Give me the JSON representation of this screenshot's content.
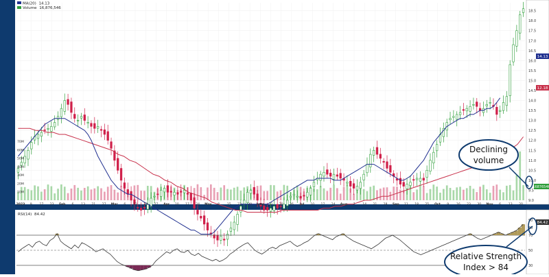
{
  "chart_data": [
    {
      "type": "candlestick",
      "title": "",
      "legend": [
        {
          "name": "MA(20)",
          "value": "14.13",
          "color": "#1f2f8f"
        },
        {
          "name": "Volume",
          "value": "16,876,546",
          "color": "#2e9e3a"
        }
      ],
      "legend_placement": "top-left",
      "y_axis_side": "right",
      "ylim": [
        9.0,
        18.9
      ],
      "y_ticks": [
        "18.5",
        "18.0",
        "17.5",
        "17.0",
        "16.5",
        "16.0",
        "15.5",
        "15.0",
        "14.5",
        "14.0",
        "13.5",
        "13.0",
        "12.5",
        "12.0",
        "11.5",
        "11.0",
        "10.5",
        "10.0",
        "9.5",
        "9.0"
      ],
      "price_badges": [
        {
          "value": "14.13",
          "color": "#1f2f8f"
        },
        {
          "value": "12.18",
          "color": "#c8304a"
        }
      ],
      "volume_axis": [
        "70M",
        "60M",
        "50M",
        "40M",
        "30M",
        "20M",
        "10M"
      ],
      "volume_ylim": [
        0,
        75
      ],
      "volume_badge": "16876546",
      "x_labels": [
        "2023",
        "9",
        "17",
        "23",
        "Feb",
        "6",
        "13",
        "21",
        "27",
        "Mar",
        "6",
        "13",
        "20",
        "27",
        "Apr",
        "10",
        "17",
        "24",
        "May",
        "8",
        "15",
        "22",
        "30",
        "June",
        "12",
        "20",
        "26",
        "Jul",
        "10",
        "17",
        "24",
        "Aug",
        "7",
        "14",
        "21",
        "28",
        "Sep",
        "11",
        "18",
        "25",
        "Oct",
        "9",
        "16",
        "23",
        "30",
        "Nov",
        "6",
        "13",
        "20"
      ],
      "close": [
        10.6,
        10.9,
        11.2,
        11.5,
        11.9,
        12.2,
        12.3,
        12.4,
        12.5,
        12.6,
        12.7,
        12.9,
        13.2,
        13.6,
        14.0,
        13.8,
        13.4,
        13.1,
        13.0,
        13.2,
        13.0,
        12.9,
        12.7,
        12.6,
        12.7,
        12.5,
        12.3,
        12.0,
        11.6,
        11.0,
        10.5,
        10.0,
        9.6,
        9.3,
        9.0,
        8.8,
        8.6,
        8.5,
        8.6,
        8.8,
        9.1,
        9.2,
        9.3,
        9.5,
        9.6,
        9.4,
        9.4,
        9.4,
        9.3,
        9.4,
        9.5,
        9.3,
        9.0,
        8.6,
        8.3,
        8.1,
        7.8,
        7.5,
        7.3,
        7.1,
        7.0,
        7.2,
        7.0,
        7.3,
        7.6,
        7.9,
        8.3,
        8.7,
        9.0,
        9.4,
        9.5,
        9.3,
        9.0,
        8.7,
        8.5,
        8.5,
        8.6,
        8.7,
        8.6,
        8.7,
        8.8,
        9.0,
        9.2,
        9.3,
        9.2,
        9.1,
        9.2,
        9.4,
        9.6,
        9.9,
        10.1,
        10.3,
        10.4,
        10.3,
        10.2,
        10.3,
        10.2,
        10.1,
        10.0,
        9.9,
        9.7,
        9.6,
        9.7,
        9.9,
        10.3,
        10.8,
        11.3,
        11.5,
        11.3,
        11.1,
        10.9,
        10.6,
        10.4,
        10.2,
        10.0,
        9.8,
        9.7,
        9.8,
        9.9,
        10.0,
        10.1,
        10.1,
        10.0,
        10.5,
        11.0,
        11.4,
        11.8,
        12.3,
        12.6,
        12.9,
        13.1,
        13.2,
        13.3,
        13.4,
        13.5,
        13.6,
        13.7,
        13.8,
        13.7,
        13.5,
        13.6,
        13.8,
        13.9,
        13.7,
        13.3,
        13.5,
        13.9,
        14.2,
        15.8,
        16.8,
        17.5,
        18.3,
        18.6
      ],
      "ma_blue": [
        11.2,
        11.4,
        11.6,
        11.8,
        12.0,
        12.2,
        12.4,
        12.6,
        12.8,
        12.9,
        13.0,
        13.1,
        13.1,
        13.1,
        13.1,
        13.0,
        12.9,
        12.8,
        12.7,
        12.6,
        12.5,
        12.3,
        12.0,
        11.6,
        11.2,
        10.9,
        10.6,
        10.3,
        10.0,
        9.8,
        9.6,
        9.5,
        9.4,
        9.3,
        9.3,
        9.2,
        9.1,
        9.0,
        8.9,
        8.8,
        8.7,
        8.6,
        8.5,
        8.4,
        8.3,
        8.2,
        8.1,
        8.0,
        7.9,
        7.8,
        7.7,
        7.6,
        7.5,
        7.5,
        7.4,
        7.3,
        7.3,
        7.3,
        7.3,
        7.4,
        7.6,
        7.8,
        8.0,
        8.2,
        8.4,
        8.6,
        8.7,
        8.8,
        8.8,
        8.8,
        8.8,
        8.8,
        8.8,
        8.8,
        8.8,
        8.8,
        8.9,
        9.0,
        9.1,
        9.2,
        9.3,
        9.4,
        9.5,
        9.6,
        9.7,
        9.8,
        9.9,
        10.0,
        10.0,
        10.0,
        10.1,
        10.1,
        10.1,
        10.1,
        10.1,
        10.0,
        10.0,
        10.0,
        10.1,
        10.2,
        10.3,
        10.4,
        10.5,
        10.6,
        10.7,
        10.8,
        10.8,
        10.8,
        10.7,
        10.6,
        10.5,
        10.4,
        10.3,
        10.2,
        10.1,
        10.0,
        10.0,
        10.1,
        10.2,
        10.4,
        10.6,
        10.8,
        11.0,
        11.3,
        11.6,
        11.9,
        12.1,
        12.3,
        12.5,
        12.7,
        12.8,
        12.9,
        13.0,
        13.1,
        13.1,
        13.2,
        13.3,
        13.3,
        13.4,
        13.5,
        13.5,
        13.6,
        13.6,
        13.7,
        13.9,
        14.13
      ],
      "ma_red": [
        12.6,
        12.6,
        12.6,
        12.5,
        12.5,
        12.4,
        12.4,
        12.3,
        12.3,
        12.2,
        12.1,
        12.0,
        11.9,
        11.8,
        11.7,
        11.6,
        11.5,
        11.3,
        11.2,
        11.0,
        10.9,
        10.7,
        10.5,
        10.3,
        10.2,
        10.0,
        9.9,
        9.7,
        9.6,
        9.4,
        9.3,
        9.2,
        9.1,
        8.9,
        8.8,
        8.7,
        8.6,
        8.5,
        8.5,
        8.4,
        8.4,
        8.4,
        8.4,
        8.4,
        8.4,
        8.5,
        8.5,
        8.5,
        8.5,
        8.5,
        8.5,
        8.5,
        8.6,
        8.6,
        8.7,
        8.7,
        8.8,
        8.8,
        8.9,
        9.0,
        9.0,
        9.1,
        9.2,
        9.2,
        9.3,
        9.4,
        9.5,
        9.6,
        9.7,
        9.8,
        9.9,
        10.0,
        10.1,
        10.2,
        10.3,
        10.4,
        10.5,
        10.6,
        10.7,
        10.8,
        10.9,
        11.0,
        11.2,
        11.4,
        11.6,
        11.8,
        12.18
      ],
      "annotation": "Declining\nvolume"
    },
    {
      "type": "line",
      "legend": [
        {
          "name": "RSI(14)",
          "value": "84.42",
          "color": "#222222"
        }
      ],
      "ylim": [
        20,
        100
      ],
      "y_ticks": [
        "90",
        "80",
        "70",
        "50",
        "30"
      ],
      "levels": [
        70,
        50,
        30
      ],
      "badge": "84.42",
      "rsi": [
        48,
        52,
        55,
        58,
        54,
        60,
        62,
        58,
        56,
        63,
        66,
        72,
        62,
        58,
        55,
        52,
        57,
        53,
        60,
        58,
        55,
        52,
        48,
        50,
        52,
        48,
        45,
        40,
        35,
        32,
        30,
        28,
        26,
        24,
        23,
        24,
        25,
        27,
        30,
        36,
        40,
        44,
        48,
        46,
        50,
        52,
        48,
        47,
        50,
        45,
        43,
        46,
        42,
        40,
        38,
        36,
        38,
        35,
        37,
        40,
        45,
        48,
        52,
        55,
        58,
        60,
        55,
        50,
        47,
        45,
        48,
        52,
        54,
        52,
        56,
        58,
        60,
        62,
        58,
        55,
        57,
        60,
        62,
        66,
        70,
        72,
        70,
        68,
        66,
        64,
        68,
        70,
        72,
        68,
        65,
        62,
        60,
        58,
        56,
        54,
        52,
        55,
        58,
        62,
        66,
        68,
        70,
        67,
        64,
        60,
        56,
        52,
        48,
        46,
        44,
        46,
        48,
        50,
        52,
        54,
        56,
        58,
        60,
        62,
        64,
        66,
        68,
        70,
        72,
        69,
        66,
        64,
        66,
        68,
        70,
        72,
        74,
        72,
        70,
        72,
        74,
        76,
        80,
        84.42
      ],
      "annotation": "Relative Strength\nIndex > 84"
    }
  ]
}
